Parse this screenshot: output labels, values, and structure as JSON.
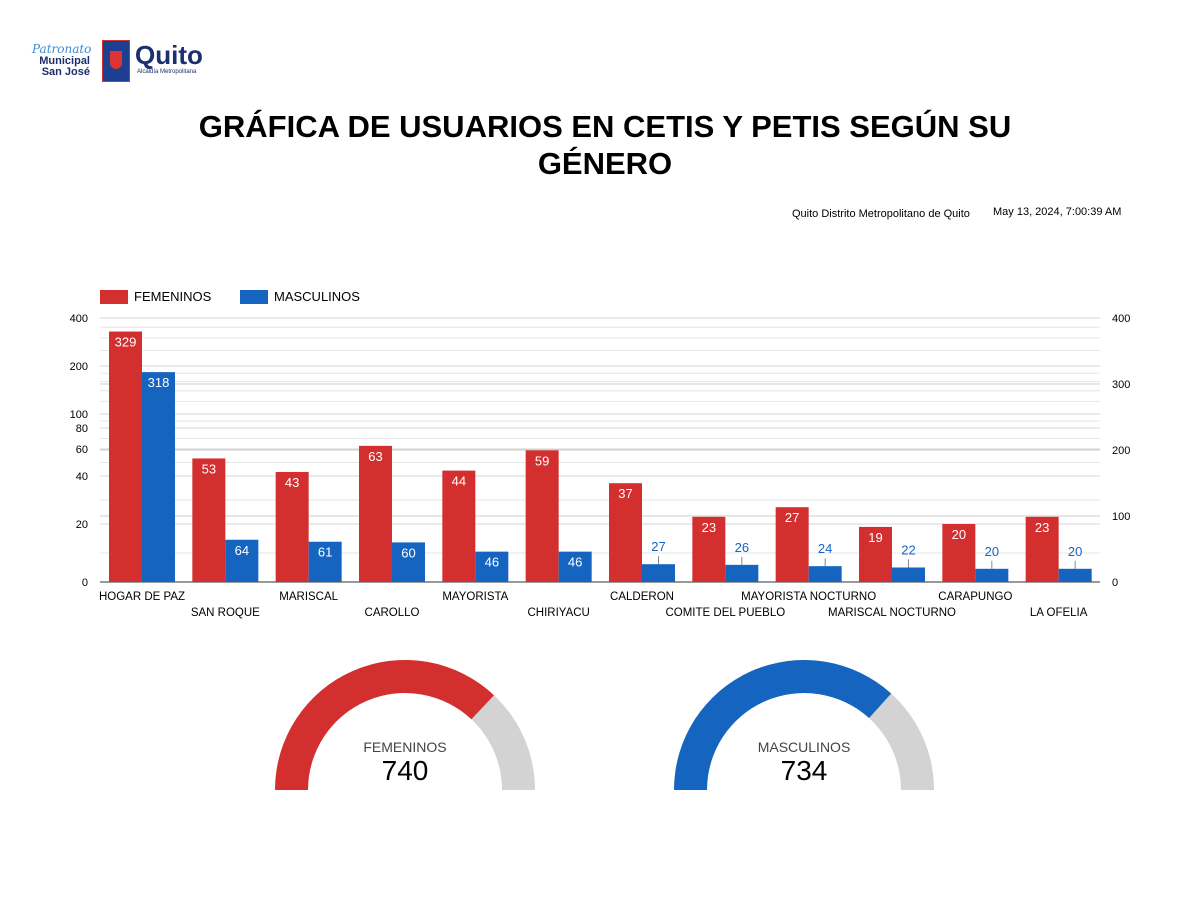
{
  "logo": {
    "patronato": "Patronato",
    "municipal": "Municipal",
    "san_jose": "San José",
    "quito": "Quito",
    "alcaldia": "Alcaldía Metropolitana"
  },
  "title": "GRÁFICA DE USUARIOS EN CETIS Y PETIS SEGÚN SU GÉNERO",
  "location": "Quito Distrito Metropolitano de Quito",
  "timestamp": "May 13, 2024, 7:00:39 AM",
  "colors": {
    "femeninos": "#d32f2f",
    "masculinos": "#1565c0",
    "gauge_bg": "#d3d3d3"
  },
  "chart_data": {
    "type": "bar",
    "legend_position": "top-left",
    "categories": [
      "HOGAR DE PAZ",
      "SAN ROQUE",
      "MARISCAL",
      "CAROLLO",
      "MAYORISTA",
      "CHIRIYACU",
      "CALDERON",
      "COMITE DEL PUEBLO",
      "MAYORISTA NOCTURNO",
      "MARISCAL NOCTURNO",
      "CARAPUNGO",
      "LA OFELIA"
    ],
    "series": [
      {
        "name": "FEMENINOS",
        "axis": "left",
        "values": [
          329,
          53,
          43,
          63,
          44,
          59,
          37,
          23,
          27,
          19,
          20,
          23
        ]
      },
      {
        "name": "MASCULINOS",
        "axis": "right",
        "values": [
          318,
          64,
          61,
          60,
          46,
          46,
          27,
          26,
          24,
          22,
          20,
          20
        ]
      }
    ],
    "left_axis": {
      "scale": "log",
      "ticks": [
        0,
        20,
        40,
        60,
        80,
        100,
        200,
        400
      ],
      "ylim": [
        0,
        400
      ]
    },
    "right_axis": {
      "scale": "linear",
      "ticks": [
        0,
        100,
        200,
        300,
        400
      ],
      "ylim": [
        0,
        400
      ]
    }
  },
  "gauges": [
    {
      "label": "FEMENINOS",
      "value": 740,
      "max": 1000
    },
    {
      "label": "MASCULINOS",
      "value": 734,
      "max": 1000
    }
  ]
}
